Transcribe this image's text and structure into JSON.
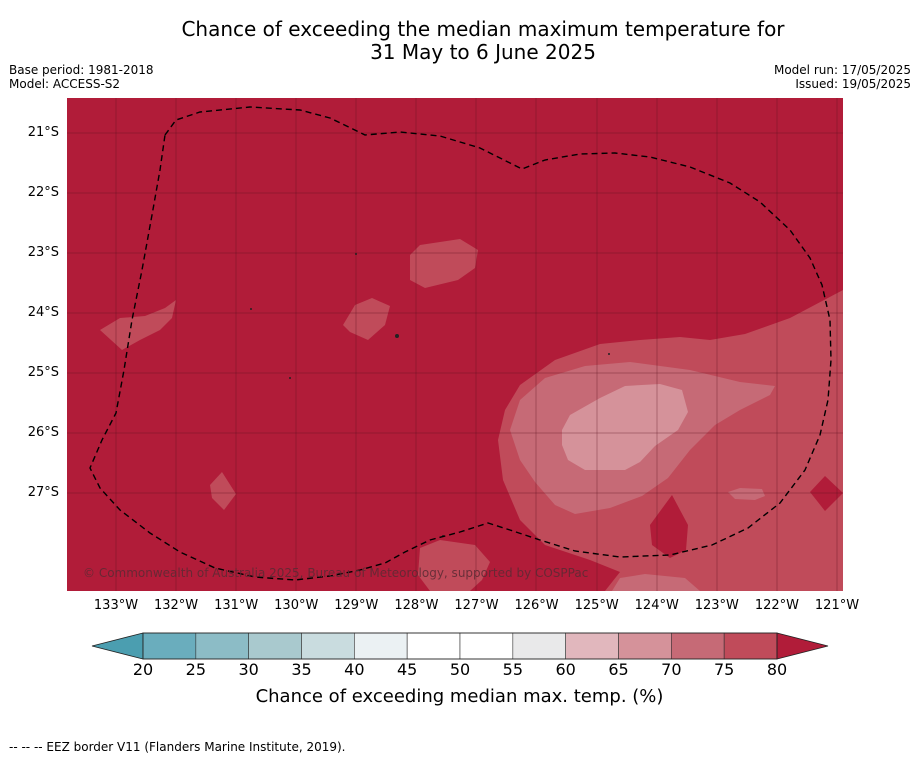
{
  "title_line1": "Chance of exceeding the median maximum temperature for",
  "title_line2": "31 May to 6 June 2025",
  "base_period": "Base period: 1981-2018",
  "model": "Model: ACCESS-S2",
  "model_run": "Model run: 17/05/2025",
  "issued": "Issued: 19/05/2025",
  "copyright": "© Commonwealth of Australia 2025, Bureau of Meteorology, supported by COSPPac",
  "latitude_ticks": [
    "21°S",
    "22°S",
    "23°S",
    "24°S",
    "25°S",
    "26°S",
    "27°S"
  ],
  "longitude_ticks": [
    "133°W",
    "132°W",
    "131°W",
    "130°W",
    "129°W",
    "128°W",
    "127°W",
    "126°W",
    "125°W",
    "124°W",
    "123°W",
    "122°W",
    "121°W"
  ],
  "colorbar": {
    "labels": [
      "20",
      "25",
      "30",
      "35",
      "40",
      "45",
      "50",
      "55",
      "60",
      "65",
      "70",
      "75",
      "80"
    ],
    "colors": [
      "#6aadbd",
      "#8cbcc6",
      "#a9c9ce",
      "#c9dcdf",
      "#ebf1f3",
      "#ffffff",
      "#ffffff",
      "#e9e9ea",
      "#e1b7bd",
      "#d5929a",
      "#c66a76",
      "#c04b5a"
    ],
    "under_color": "#4b9eb0",
    "over_color": "#b11c39",
    "title": "Chance of exceeding median max. temp. (%)"
  },
  "footnote": "-- -- -- EEZ border V11 (Flanders Marine Institute, 2019).",
  "map_colors": {
    "p80": "#b11c39",
    "p75": "#c04b5a",
    "p70": "#c66a76",
    "p65": "#d5929a"
  }
}
